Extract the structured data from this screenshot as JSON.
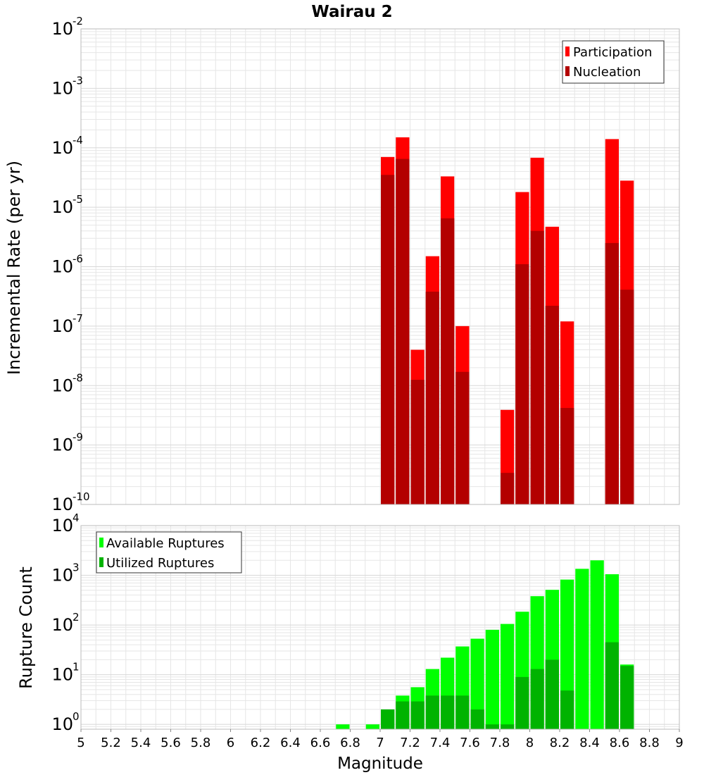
{
  "colors": {
    "participation": "#ff0000",
    "nucleation": "#b30000",
    "available": "#00ff00",
    "utilized": "#00b300",
    "grid": "#e6e6e6",
    "frame": "#bbbbbb"
  },
  "chart_data": [
    {
      "type": "bar",
      "scale": "log",
      "title": "Wairau 2",
      "xlabel": "",
      "ylabel": "Incremental Rate (per yr)",
      "xlim": [
        5,
        9
      ],
      "ylim_exponents": [
        -10,
        -2
      ],
      "y_tick_base": "10",
      "y_tick_exponents": [
        "-10",
        "-9",
        "-8",
        "-7",
        "-6",
        "-5",
        "-4",
        "-3",
        "-2"
      ],
      "legend": [
        "Participation",
        "Nucleation"
      ],
      "legend_position": "top-right",
      "series": [
        {
          "name": "Participation",
          "points": [
            [
              7.05,
              7e-05
            ],
            [
              7.15,
              0.00015
            ],
            [
              7.25,
              4e-08
            ],
            [
              7.35,
              1.5e-06
            ],
            [
              7.45,
              3.3e-05
            ],
            [
              7.55,
              1e-07
            ],
            [
              7.85,
              3.9e-09
            ],
            [
              7.95,
              1.8e-05
            ],
            [
              8.05,
              6.8e-05
            ],
            [
              8.15,
              4.7e-06
            ],
            [
              8.25,
              1.2e-07
            ],
            [
              8.55,
              0.00014
            ],
            [
              8.65,
              2.8e-05
            ]
          ]
        },
        {
          "name": "Nucleation",
          "points": [
            [
              7.05,
              3.5e-05
            ],
            [
              7.15,
              6.5e-05
            ],
            [
              7.25,
              1.25e-08
            ],
            [
              7.35,
              3.8e-07
            ],
            [
              7.45,
              6.5e-06
            ],
            [
              7.55,
              1.7e-08
            ],
            [
              7.85,
              3.4e-10
            ],
            [
              7.95,
              1.1e-06
            ],
            [
              8.05,
              4e-06
            ],
            [
              8.15,
              2.2e-07
            ],
            [
              8.25,
              4.2e-09
            ],
            [
              8.55,
              2.5e-06
            ],
            [
              8.65,
              4.1e-07
            ]
          ]
        }
      ]
    },
    {
      "type": "bar",
      "scale": "log",
      "title": "",
      "xlabel": "Magnitude",
      "ylabel": "Rupture Count",
      "xlim": [
        5,
        9
      ],
      "ylim": [
        0.8,
        10000
      ],
      "x_ticks": [
        "5",
        "5.2",
        "5.4",
        "5.6",
        "5.8",
        "6",
        "6.2",
        "6.4",
        "6.6",
        "6.8",
        "7",
        "7.2",
        "7.4",
        "7.6",
        "7.8",
        "8",
        "8.2",
        "8.4",
        "8.6",
        "8.8",
        "9"
      ],
      "y_tick_base": "10",
      "y_tick_exponents": [
        "0",
        "1",
        "2",
        "3",
        "4"
      ],
      "legend": [
        "Available Ruptures",
        "Utilized Ruptures"
      ],
      "legend_position": "top-left",
      "series": [
        {
          "name": "Available Ruptures",
          "points": [
            [
              6.75,
              1
            ],
            [
              6.95,
              1
            ],
            [
              7.05,
              2
            ],
            [
              7.15,
              3.8
            ],
            [
              7.25,
              5.6
            ],
            [
              7.35,
              13
            ],
            [
              7.45,
              22
            ],
            [
              7.55,
              37
            ],
            [
              7.65,
              53
            ],
            [
              7.75,
              80
            ],
            [
              7.85,
              105
            ],
            [
              7.95,
              185
            ],
            [
              8.05,
              380
            ],
            [
              8.15,
              510
            ],
            [
              8.25,
              820
            ],
            [
              8.35,
              1350
            ],
            [
              8.45,
              2000
            ],
            [
              8.55,
              1050
            ],
            [
              8.65,
              16
            ]
          ]
        },
        {
          "name": "Utilized Ruptures",
          "points": [
            [
              7.05,
              2
            ],
            [
              7.15,
              2.9
            ],
            [
              7.25,
              2.9
            ],
            [
              7.35,
              3.8
            ],
            [
              7.45,
              3.8
            ],
            [
              7.55,
              3.8
            ],
            [
              7.65,
              2
            ],
            [
              7.75,
              1
            ],
            [
              7.85,
              1
            ],
            [
              7.95,
              9
            ],
            [
              8.05,
              13
            ],
            [
              8.15,
              20
            ],
            [
              8.25,
              4.8
            ],
            [
              8.55,
              45
            ],
            [
              8.65,
              15
            ]
          ]
        }
      ]
    }
  ]
}
